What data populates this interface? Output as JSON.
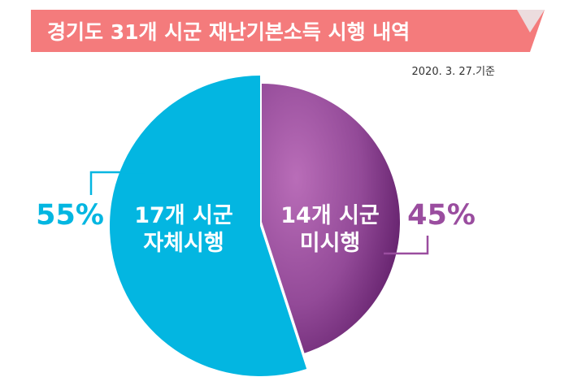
{
  "header": {
    "title": "경기도 31개 시군 재난기본소득 시행 내역",
    "date": "2020. 3. 27.기준"
  },
  "colors": {
    "banner": "#f47b7c",
    "banner_fold": "#e8d5d7",
    "implemented": "#03b6e1",
    "not_implemented": "#9a4d9f",
    "not_implemented_dark": "#5e1c67"
  },
  "chart_data": {
    "type": "pie",
    "title": "경기도 31개 시군 재난기본소득 시행 내역",
    "slices": [
      {
        "label_line1": "17개 시군",
        "label_line2": "자체시행",
        "count": 17,
        "percent": 55,
        "percent_label": "55%"
      },
      {
        "label_line1": "14개 시군",
        "label_line2": "미시행",
        "count": 14,
        "percent": 45,
        "percent_label": "45%"
      }
    ]
  }
}
